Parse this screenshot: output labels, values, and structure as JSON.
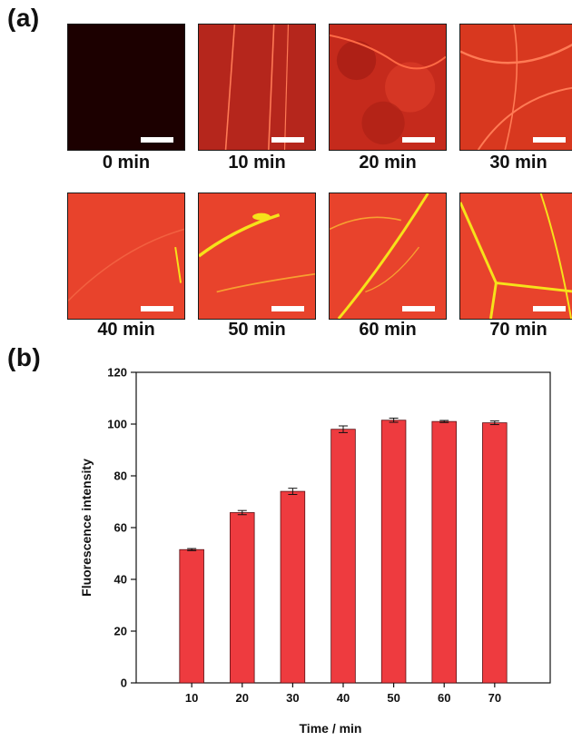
{
  "panel_a": {
    "label": "(a)",
    "tiles": [
      {
        "caption": "0 min",
        "tone": "dark"
      },
      {
        "caption": "10 min",
        "tone": "dim"
      },
      {
        "caption": "20 min",
        "tone": "mottled"
      },
      {
        "caption": "30 min",
        "tone": "veins"
      },
      {
        "caption": "40 min",
        "tone": "flat"
      },
      {
        "caption": "50 min",
        "tone": "yellow-streak"
      },
      {
        "caption": "60 min",
        "tone": "yellow-veins"
      },
      {
        "caption": "70 min",
        "tone": "yellow-fork"
      }
    ]
  },
  "panel_b": {
    "label": "(b)"
  },
  "colors": {
    "bar_fill": "#ee3b3f",
    "bar_stroke": "#5a1014",
    "tile_red": "#e8432c",
    "tile_dark": "#1c0000",
    "vein_yellow": "#f6e21a"
  },
  "chart_data": {
    "type": "bar",
    "categories": [
      "10",
      "20",
      "30",
      "40",
      "50",
      "60",
      "70"
    ],
    "values": [
      51.5,
      65.8,
      74.0,
      98.0,
      101.5,
      101.0,
      100.5
    ],
    "errors": [
      0.4,
      0.8,
      1.2,
      1.3,
      0.8,
      0.4,
      0.7
    ],
    "title": "",
    "xlabel": "Time / min",
    "ylabel": "Fluorescence intensity",
    "ylim": [
      0,
      120
    ],
    "yticks": [
      0,
      20,
      40,
      60,
      80,
      100,
      120
    ],
    "grid": false
  }
}
